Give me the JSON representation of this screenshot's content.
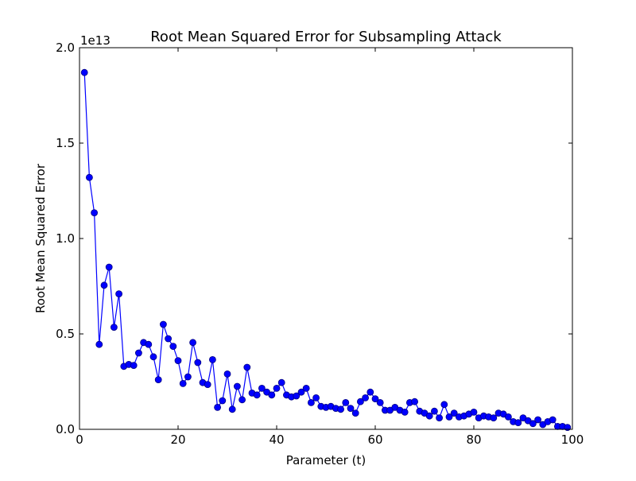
{
  "chart_data": {
    "type": "line",
    "title": "Root Mean Squared Error for Subsampling Attack",
    "xlabel": "Parameter (t)",
    "ylabel": "Root Mean Squared Error",
    "y_offset_label": "1e13",
    "xlim": [
      0,
      100
    ],
    "ylim": [
      0,
      2.0
    ],
    "y_scale_factor": 10000000000000.0,
    "grid": false,
    "legend": "none",
    "x_ticks": [
      0,
      20,
      40,
      60,
      80,
      100
    ],
    "x_tick_labels": [
      "0",
      "20",
      "40",
      "60",
      "80",
      "100"
    ],
    "y_ticks": [
      0.0,
      0.5,
      1.0,
      1.5,
      2.0
    ],
    "y_tick_labels": [
      "0.0",
      "0.5",
      "1.0",
      "1.5",
      "2.0"
    ],
    "colors": {
      "series": "#0000ff",
      "marker_edge": "#000080"
    },
    "series": [
      {
        "marker": "circle",
        "x": [
          1,
          2,
          3,
          4,
          5,
          6,
          7,
          8,
          9,
          10,
          11,
          12,
          13,
          14,
          15,
          16,
          17,
          18,
          19,
          20,
          21,
          22,
          23,
          24,
          25,
          26,
          27,
          28,
          29,
          30,
          31,
          32,
          33,
          34,
          35,
          36,
          37,
          38,
          39,
          40,
          41,
          42,
          43,
          44,
          45,
          46,
          47,
          48,
          49,
          50,
          51,
          52,
          53,
          54,
          55,
          56,
          57,
          58,
          59,
          60,
          61,
          62,
          63,
          64,
          65,
          66,
          67,
          68,
          69,
          70,
          71,
          72,
          73,
          74,
          75,
          76,
          77,
          78,
          79,
          80,
          81,
          82,
          83,
          84,
          85,
          86,
          87,
          88,
          89,
          90,
          91,
          92,
          93,
          94,
          95,
          96,
          97,
          98,
          99
        ],
        "values": [
          1.87,
          1.32,
          1.135,
          0.445,
          0.755,
          0.85,
          0.535,
          0.71,
          0.33,
          0.34,
          0.335,
          0.4,
          0.455,
          0.445,
          0.38,
          0.26,
          0.55,
          0.475,
          0.435,
          0.36,
          0.24,
          0.275,
          0.455,
          0.35,
          0.245,
          0.235,
          0.365,
          0.115,
          0.15,
          0.29,
          0.105,
          0.225,
          0.155,
          0.325,
          0.19,
          0.18,
          0.215,
          0.195,
          0.18,
          0.215,
          0.245,
          0.18,
          0.17,
          0.175,
          0.195,
          0.215,
          0.14,
          0.165,
          0.12,
          0.115,
          0.12,
          0.11,
          0.105,
          0.14,
          0.11,
          0.085,
          0.145,
          0.165,
          0.195,
          0.16,
          0.14,
          0.1,
          0.1,
          0.115,
          0.1,
          0.09,
          0.14,
          0.145,
          0.095,
          0.085,
          0.07,
          0.095,
          0.06,
          0.13,
          0.065,
          0.085,
          0.065,
          0.07,
          0.08,
          0.09,
          0.06,
          0.07,
          0.065,
          0.06,
          0.085,
          0.08,
          0.065,
          0.04,
          0.035,
          0.06,
          0.045,
          0.03,
          0.05,
          0.025,
          0.04,
          0.05,
          0.015,
          0.015,
          0.01
        ]
      }
    ]
  }
}
